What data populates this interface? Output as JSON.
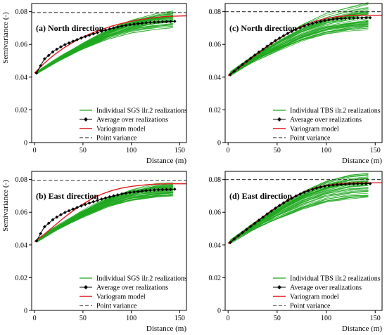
{
  "figure": {
    "x_axis_label": "Distance (m)",
    "y_axis_label": "Semivariance (-)"
  },
  "colors": {
    "realizations": "#1fa81f",
    "average": "#000000",
    "model": "#e0191d",
    "point_variance": "#444444",
    "axes": "#000000"
  },
  "chart_data": [
    {
      "type": "line",
      "panel": "a",
      "title": "(a) North direction",
      "xlabel": "Distance (m)",
      "ylabel": "Semivariance (-)",
      "xlim": [
        -3,
        157
      ],
      "ylim": [
        0,
        0.085
      ],
      "x_ticks": [
        0,
        50,
        100,
        150
      ],
      "y_ticks": [
        0,
        0.02,
        0.04,
        0.06,
        0.08
      ],
      "x_tick_labels": [
        "0",
        "50",
        "100",
        "150"
      ],
      "y_tick_labels": [
        "0",
        "0.02",
        "0.04",
        "0.06",
        "0.08"
      ],
      "legend": [
        "Individual SGS ilr.2 realizations",
        "Average over realizations",
        "Variogram model",
        "Point variance"
      ],
      "legend_position": "bottom-right",
      "point_variance": 0.0795,
      "realization_band": {
        "low": [
          0.042,
          0.05,
          0.057,
          0.063,
          0.067,
          0.069,
          0.07
        ],
        "high": [
          0.043,
          0.052,
          0.061,
          0.069,
          0.075,
          0.079,
          0.081
        ]
      },
      "series": [
        {
          "name": "Average over realizations",
          "x": [
            2,
            10,
            20,
            30,
            40,
            50,
            60,
            70,
            80,
            90,
            100,
            110,
            120,
            130,
            140,
            145
          ],
          "y": [
            0.0425,
            0.051,
            0.056,
            0.0595,
            0.062,
            0.0643,
            0.0663,
            0.0682,
            0.0698,
            0.0712,
            0.0722,
            0.0729,
            0.0735,
            0.0738,
            0.074,
            0.0741
          ]
        },
        {
          "name": "Variogram model",
          "x": [
            0,
            10,
            20,
            30,
            40,
            50,
            60,
            70,
            80,
            90,
            100,
            110,
            120,
            130,
            140,
            157
          ],
          "y": [
            0.0425,
            0.0485,
            0.0535,
            0.0578,
            0.0614,
            0.0645,
            0.0671,
            0.0693,
            0.0712,
            0.0728,
            0.0742,
            0.0752,
            0.0761,
            0.0768,
            0.0772,
            0.0775
          ]
        }
      ]
    },
    {
      "type": "line",
      "panel": "c",
      "title": "(c) North direction",
      "xlabel": "Distance (m)",
      "ylabel": "",
      "xlim": [
        -3,
        157
      ],
      "ylim": [
        0,
        0.085
      ],
      "x_ticks": [
        0,
        50,
        100,
        150
      ],
      "y_ticks": [
        0,
        0.02,
        0.04,
        0.06,
        0.08
      ],
      "x_tick_labels": [
        "0",
        "50",
        "100",
        "150"
      ],
      "y_tick_labels": [
        "0",
        "0.02",
        "0.04",
        "0.06",
        "0.08"
      ],
      "legend": [
        "Individual TBS ilr.2 realizations",
        "Average over realizations",
        "Variogram model",
        "Point variance"
      ],
      "legend_position": "bottom-right",
      "point_variance": 0.08,
      "realization_band": {
        "low": [
          0.041,
          0.049,
          0.056,
          0.062,
          0.066,
          0.068,
          0.069
        ],
        "high": [
          0.043,
          0.053,
          0.063,
          0.072,
          0.079,
          0.083,
          0.086
        ]
      },
      "series": [
        {
          "name": "Average over realizations",
          "x": [
            2,
            10,
            20,
            30,
            40,
            50,
            60,
            70,
            80,
            90,
            100,
            110,
            120,
            130,
            140,
            145
          ],
          "y": [
            0.0415,
            0.0455,
            0.0502,
            0.0547,
            0.059,
            0.063,
            0.0665,
            0.0694,
            0.0718,
            0.0735,
            0.0748,
            0.0756,
            0.076,
            0.0762,
            0.0763,
            0.0763
          ]
        },
        {
          "name": "Variogram model",
          "x": [
            0,
            10,
            20,
            30,
            40,
            50,
            60,
            70,
            80,
            90,
            100,
            110,
            120,
            130,
            140,
            157
          ],
          "y": [
            0.041,
            0.045,
            0.0497,
            0.0543,
            0.0587,
            0.0628,
            0.0665,
            0.0697,
            0.0723,
            0.0744,
            0.0759,
            0.0769,
            0.0775,
            0.0777,
            0.0778,
            0.0778
          ]
        }
      ]
    },
    {
      "type": "line",
      "panel": "b",
      "title": "(b) East direction",
      "xlabel": "Distance (m)",
      "ylabel": "Semivariance (-)",
      "xlim": [
        -3,
        157
      ],
      "ylim": [
        0,
        0.085
      ],
      "x_ticks": [
        0,
        50,
        100,
        150
      ],
      "y_ticks": [
        0,
        0.02,
        0.04,
        0.06,
        0.08
      ],
      "x_tick_labels": [
        "0",
        "50",
        "100",
        "150"
      ],
      "y_tick_labels": [
        "0",
        "0.02",
        "0.04",
        "0.06",
        "0.08"
      ],
      "legend": [
        "Individual SGS ilr.2 realizations",
        "Average over realizations",
        "Variogram model",
        "Point variance"
      ],
      "legend_position": "bottom-right",
      "point_variance": 0.0795,
      "realization_band": {
        "low": [
          0.042,
          0.05,
          0.057,
          0.063,
          0.067,
          0.069,
          0.07
        ],
        "high": [
          0.043,
          0.052,
          0.061,
          0.069,
          0.074,
          0.077,
          0.078
        ]
      },
      "series": [
        {
          "name": "Average over realizations",
          "x": [
            2,
            10,
            20,
            30,
            40,
            50,
            60,
            70,
            80,
            90,
            100,
            110,
            120,
            130,
            140,
            145
          ],
          "y": [
            0.0425,
            0.051,
            0.056,
            0.0595,
            0.062,
            0.0643,
            0.0663,
            0.0682,
            0.0698,
            0.0712,
            0.0722,
            0.0729,
            0.0735,
            0.0738,
            0.074,
            0.0741
          ]
        },
        {
          "name": "Variogram model",
          "x": [
            0,
            10,
            20,
            30,
            40,
            50,
            60,
            70,
            80,
            90,
            100,
            110,
            120,
            130,
            140,
            157
          ],
          "y": [
            0.042,
            0.0465,
            0.0515,
            0.0565,
            0.061,
            0.065,
            0.0685,
            0.0712,
            0.0733,
            0.0748,
            0.0758,
            0.0765,
            0.077,
            0.0773,
            0.0774,
            0.0774
          ]
        }
      ]
    },
    {
      "type": "line",
      "panel": "d",
      "title": "(d) East direction",
      "xlabel": "Distance (m)",
      "ylabel": "",
      "xlim": [
        -3,
        157
      ],
      "ylim": [
        0,
        0.085
      ],
      "x_ticks": [
        0,
        50,
        100,
        150
      ],
      "y_ticks": [
        0,
        0.02,
        0.04,
        0.06,
        0.08
      ],
      "x_tick_labels": [
        "0",
        "50",
        "100",
        "150"
      ],
      "y_tick_labels": [
        "0",
        "0.02",
        "0.04",
        "0.06",
        "0.08"
      ],
      "legend": [
        "Individual TBS ilr.2 realizations",
        "Average over realizations",
        "Variogram model",
        "Point variance"
      ],
      "legend_position": "bottom-right",
      "point_variance": 0.08,
      "realization_band": {
        "low": [
          0.041,
          0.049,
          0.056,
          0.062,
          0.066,
          0.068,
          0.069
        ],
        "high": [
          0.043,
          0.053,
          0.063,
          0.072,
          0.079,
          0.083,
          0.084
        ]
      },
      "series": [
        {
          "name": "Average over realizations",
          "x": [
            2,
            10,
            20,
            30,
            40,
            50,
            60,
            70,
            80,
            90,
            100,
            110,
            120,
            130,
            140,
            145
          ],
          "y": [
            0.0415,
            0.0455,
            0.05,
            0.0545,
            0.059,
            0.0632,
            0.067,
            0.0702,
            0.0728,
            0.0748,
            0.0761,
            0.0768,
            0.0772,
            0.0774,
            0.0775,
            0.0775
          ]
        },
        {
          "name": "Variogram model",
          "x": [
            0,
            10,
            20,
            30,
            40,
            50,
            60,
            70,
            80,
            90,
            100,
            110,
            120,
            130,
            140,
            157
          ],
          "y": [
            0.041,
            0.0452,
            0.05,
            0.0547,
            0.0592,
            0.0634,
            0.0672,
            0.0704,
            0.073,
            0.075,
            0.0764,
            0.0772,
            0.0777,
            0.0779,
            0.078,
            0.078
          ]
        }
      ]
    }
  ]
}
